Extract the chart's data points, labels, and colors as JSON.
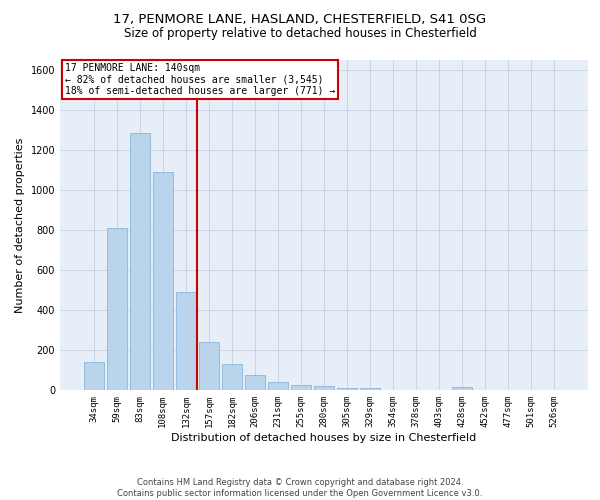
{
  "title1": "17, PENMORE LANE, HASLAND, CHESTERFIELD, S41 0SG",
  "title2": "Size of property relative to detached houses in Chesterfield",
  "xlabel": "Distribution of detached houses by size in Chesterfield",
  "ylabel": "Number of detached properties",
  "footnote": "Contains HM Land Registry data © Crown copyright and database right 2024.\nContains public sector information licensed under the Open Government Licence v3.0.",
  "categories": [
    "34sqm",
    "59sqm",
    "83sqm",
    "108sqm",
    "132sqm",
    "157sqm",
    "182sqm",
    "206sqm",
    "231sqm",
    "255sqm",
    "280sqm",
    "305sqm",
    "329sqm",
    "354sqm",
    "378sqm",
    "403sqm",
    "428sqm",
    "452sqm",
    "477sqm",
    "501sqm",
    "526sqm"
  ],
  "values": [
    140,
    810,
    1285,
    1090,
    490,
    240,
    130,
    75,
    42,
    25,
    18,
    10,
    8,
    2,
    2,
    2,
    15,
    2,
    2,
    2,
    2
  ],
  "bar_color": "#bad4eb",
  "bar_edge_color": "#7aadd4",
  "vline_x": 4.5,
  "vline_color": "#cc0000",
  "annotation_text": "17 PENMORE LANE: 140sqm\n← 82% of detached houses are smaller (3,545)\n18% of semi-detached houses are larger (771) →",
  "annotation_box_color": "#ffffff",
  "annotation_box_edge": "#cc0000",
  "ylim": [
    0,
    1650
  ],
  "yticks": [
    0,
    200,
    400,
    600,
    800,
    1000,
    1200,
    1400,
    1600
  ],
  "grid_color": "#c5d5e8",
  "bg_color": "#e8eef8",
  "title1_fontsize": 9.5,
  "title2_fontsize": 8.5,
  "xlabel_fontsize": 8,
  "ylabel_fontsize": 8,
  "annot_fontsize": 7,
  "tick_fontsize": 6.5
}
